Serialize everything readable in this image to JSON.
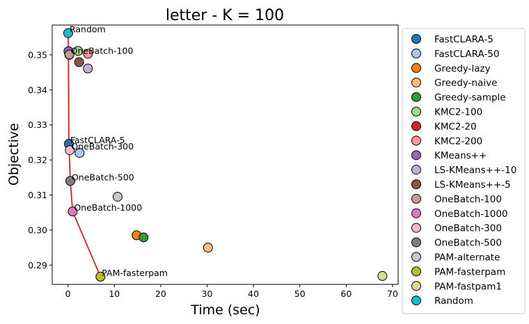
{
  "chart_data": {
    "type": "scatter",
    "title": "letter - K = 100",
    "xlabel": "Time (sec)",
    "ylabel": "Objective",
    "xlim": [
      -3.4,
      71.2
    ],
    "ylim": [
      0.2845,
      0.3585
    ],
    "x_ticks": [
      0,
      10,
      20,
      30,
      40,
      50,
      60,
      70
    ],
    "y_ticks": [
      0.29,
      0.3,
      0.31,
      0.32,
      0.33,
      0.34,
      0.35
    ],
    "x_tick_labels": [
      "0",
      "10",
      "20",
      "30",
      "40",
      "50",
      "60",
      "70"
    ],
    "y_tick_labels": [
      "0.29",
      "0.30",
      "0.31",
      "0.32",
      "0.33",
      "0.34",
      "0.35"
    ],
    "grid": false,
    "legend_position": "outside-right",
    "series": [
      {
        "name": "FastCLARA-5",
        "color": "#1f77b4",
        "x": 0.2,
        "y": 0.3246
      },
      {
        "name": "FastCLARA-50",
        "color": "#aec7e8",
        "x": 2.5,
        "y": 0.322
      },
      {
        "name": "Greedy-lazy",
        "color": "#ff7f0e",
        "x": 14.8,
        "y": 0.2985
      },
      {
        "name": "Greedy-naive",
        "color": "#ffbb78",
        "x": 30.2,
        "y": 0.295
      },
      {
        "name": "Greedy-sample",
        "color": "#2ca02c",
        "x": 16.3,
        "y": 0.2979
      },
      {
        "name": "KMC2-100",
        "color": "#98df8a",
        "x": 2.2,
        "y": 0.3511
      },
      {
        "name": "KMC2-20",
        "color": "#d62728",
        "x": 0.3,
        "y": 0.35
      },
      {
        "name": "KMC2-200",
        "color": "#ff9896",
        "x": 4.3,
        "y": 0.3503
      },
      {
        "name": "KMeans++",
        "color": "#9467bd",
        "x": 0.1,
        "y": 0.351
      },
      {
        "name": "LS-KMeans++-10",
        "color": "#c5b0d5",
        "x": 4.3,
        "y": 0.3461
      },
      {
        "name": "LS-KMeans++-5",
        "color": "#8c564b",
        "x": 2.4,
        "y": 0.3479
      },
      {
        "name": "OneBatch-100",
        "color": "#c49c94",
        "x": 0.3,
        "y": 0.3501
      },
      {
        "name": "OneBatch-1000",
        "color": "#e377c2",
        "x": 1.0,
        "y": 0.3053
      },
      {
        "name": "OneBatch-300",
        "color": "#f7b6d2",
        "x": 0.4,
        "y": 0.3228
      },
      {
        "name": "OneBatch-500",
        "color": "#7f7f7f",
        "x": 0.5,
        "y": 0.314
      },
      {
        "name": "PAM-alternate",
        "color": "#c7c7c7",
        "x": 10.7,
        "y": 0.3095
      },
      {
        "name": "PAM-fasterpam",
        "color": "#bcbd22",
        "x": 7.0,
        "y": 0.2867
      },
      {
        "name": "PAM-fastpam1",
        "color": "#dbdb8d",
        "x": 67.8,
        "y": 0.2869
      },
      {
        "name": "Random",
        "color": "#17becf",
        "x": 0.05,
        "y": 0.3562
      }
    ],
    "frontier": {
      "color": "#ff0000",
      "points": [
        {
          "x": 0.05,
          "y": 0.3562
        },
        {
          "x": 0.2,
          "y": 0.3246
        },
        {
          "x": 0.5,
          "y": 0.314
        },
        {
          "x": 1.0,
          "y": 0.3053
        },
        {
          "x": 7.0,
          "y": 0.2867
        }
      ]
    },
    "annotations": [
      {
        "text": "Random",
        "x": 0.05,
        "y": 0.3562
      },
      {
        "text": "OneBatch-100",
        "x": 0.3,
        "y": 0.3501
      },
      {
        "text": "FastCLARA-5",
        "x": 0.2,
        "y": 0.3246
      },
      {
        "text": "OneBatch-300",
        "x": 0.4,
        "y": 0.3228
      },
      {
        "text": "OneBatch-500",
        "x": 0.5,
        "y": 0.314
      },
      {
        "text": "OneBatch-1000",
        "x": 1.0,
        "y": 0.3053
      },
      {
        "text": "PAM-fasterpam",
        "x": 7.0,
        "y": 0.2867
      }
    ]
  }
}
